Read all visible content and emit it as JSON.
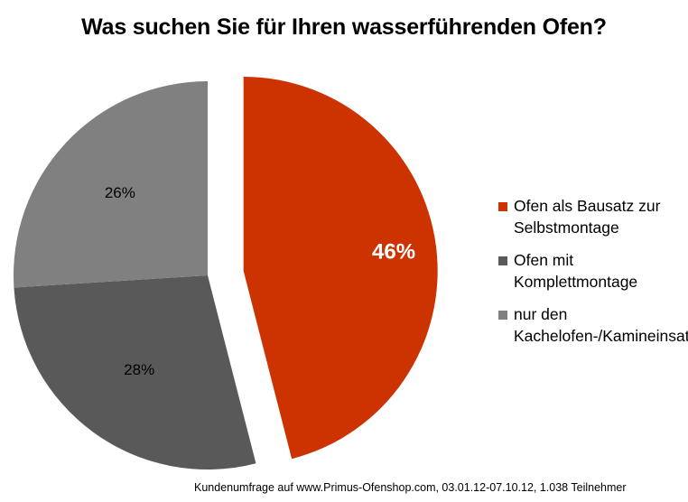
{
  "chart_data": {
    "type": "pie",
    "title": "Was suchen Sie für Ihren wasserführenden Ofen?",
    "slices": [
      {
        "name": "Ofen als Bausatz zur Selbstmontage",
        "value": 46,
        "label": "46%",
        "color": "#cc3300"
      },
      {
        "name": "Ofen mit Komplettmontage",
        "value": 28,
        "label": "28%",
        "color": "#595959"
      },
      {
        "name": "nur den Kachelofen-/Kamineinsatz",
        "value": 26,
        "label": "26%",
        "color": "#808080"
      }
    ],
    "legend": {
      "placement": "right",
      "items": [
        {
          "label": "Ofen als Bausatz zur Selbstmontage",
          "color": "#cc3300"
        },
        {
          "label": "Ofen mit Komplettmontage",
          "color": "#595959"
        },
        {
          "label": "nur den Kachelofen-/Kamineinsatz",
          "color": "#808080"
        }
      ]
    },
    "exploded_slice": 0
  },
  "footer": "Kundenumfrage auf www.Primus-Ofenshop.com, 03.01.12-07.10.12, 1.038 Teilnehmer"
}
